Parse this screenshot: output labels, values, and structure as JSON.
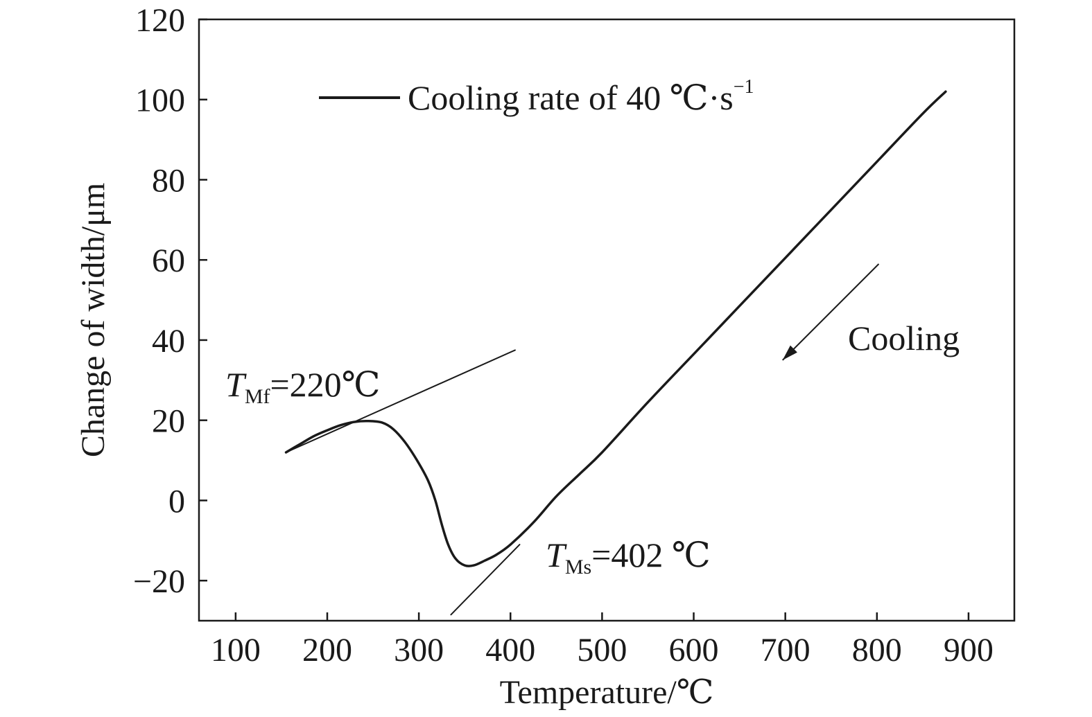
{
  "chart_data": {
    "type": "line",
    "title": "",
    "xlabel": "Temperature/℃",
    "ylabel": "Change of width/μm",
    "xlim": [
      60,
      950
    ],
    "ylim": [
      -30,
      120
    ],
    "xticks": [
      100,
      200,
      300,
      400,
      500,
      600,
      700,
      800,
      900
    ],
    "yticks": [
      -20,
      0,
      20,
      40,
      60,
      80,
      100,
      120
    ],
    "xtick_labels": [
      "100",
      "200",
      "300",
      "400",
      "500",
      "600",
      "700",
      "800",
      "900"
    ],
    "ytick_labels": [
      "−20",
      "0",
      "20",
      "40",
      "60",
      "80",
      "100",
      "120"
    ],
    "grid": false,
    "legend_placement": "top",
    "legend": {
      "label_main": "Cooling rate of 40 ℃·s",
      "label_sup": "−1"
    },
    "series": [
      {
        "name": "Cooling rate of 40 ℃·s−1",
        "color": "#1a1a1a",
        "x": [
          155,
          170,
          185,
          200,
          215,
          230,
          245,
          260,
          272,
          285,
          298,
          310,
          318,
          325,
          332,
          340,
          350,
          360,
          372,
          385,
          400,
          425,
          450,
          475,
          500,
          550,
          600,
          650,
          700,
          750,
          800,
          850,
          875
        ],
        "y": [
          12,
          14,
          16,
          17.5,
          18.8,
          19.6,
          19.8,
          19.4,
          17.8,
          14.5,
          10,
          5,
          0,
          -6,
          -11,
          -14.5,
          -16.2,
          -16.2,
          -15,
          -13.5,
          -11,
          -5.5,
          1,
          6.5,
          12,
          24.5,
          36.5,
          48.5,
          60.5,
          72.5,
          84.5,
          96.5,
          102
        ]
      },
      {
        "name": "",
        "color": "#1a1a1a",
        "x": [
          155,
          405
        ],
        "y": [
          12,
          37.5
        ]
      },
      {
        "name": "",
        "color": "#1a1a1a",
        "x": [
          335,
          410
        ],
        "y": [
          -28.5,
          -11
        ]
      }
    ],
    "annotations": [
      {
        "main": "T",
        "sub": "Mf",
        "rest": "=220℃"
      },
      {
        "main": "T",
        "sub": "Ms",
        "rest": "=402 ℃"
      },
      {
        "text": "Cooling"
      }
    ],
    "arrow": {
      "from": [
        802,
        59
      ],
      "to": [
        697,
        35
      ]
    }
  }
}
